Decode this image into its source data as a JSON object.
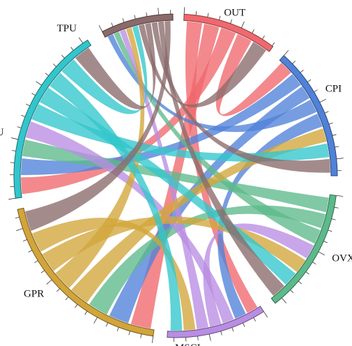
{
  "chart_data": {
    "type": "chord",
    "segments": [
      {
        "id": "OUT",
        "label": "OUT",
        "color": "#f0686d"
      },
      {
        "id": "CPI",
        "label": "CPI",
        "color": "#4f82d8"
      },
      {
        "id": "OVX",
        "label": "OVX",
        "color": "#5cba8a"
      },
      {
        "id": "MSCI",
        "label": "MSCI",
        "color": "#b98de3"
      },
      {
        "id": "GPR",
        "label": "GPR",
        "color": "#d2a53a"
      },
      {
        "id": "EPU",
        "label": "EPU",
        "color": "#32c6cc"
      },
      {
        "id": "TPU",
        "label": "TPU",
        "color": "#8a6a6a"
      }
    ],
    "ribbons": [
      {
        "source": "OUT",
        "target": "MSCI"
      },
      {
        "source": "OUT",
        "target": "GPR"
      },
      {
        "source": "OUT",
        "target": "EPU"
      },
      {
        "source": "OUT",
        "target": "CPI"
      },
      {
        "source": "CPI",
        "target": "EPU"
      },
      {
        "source": "CPI",
        "target": "GPR"
      },
      {
        "source": "CPI",
        "target": "TPU"
      },
      {
        "source": "CPI",
        "target": "MSCI"
      },
      {
        "source": "OVX",
        "target": "EPU"
      },
      {
        "source": "OVX",
        "target": "GPR"
      },
      {
        "source": "OVX",
        "target": "TPU"
      },
      {
        "source": "MSCI",
        "target": "EPU"
      },
      {
        "source": "MSCI",
        "target": "OVX"
      },
      {
        "source": "MSCI",
        "target": "TPU"
      },
      {
        "source": "GPR",
        "target": "CPI"
      },
      {
        "source": "GPR",
        "target": "TPU"
      },
      {
        "source": "GPR",
        "target": "OVX"
      },
      {
        "source": "GPR",
        "target": "MSCI"
      },
      {
        "source": "EPU",
        "target": "CPI"
      },
      {
        "source": "EPU",
        "target": "OVX"
      },
      {
        "source": "EPU",
        "target": "MSCI"
      },
      {
        "source": "EPU",
        "target": "TPU"
      },
      {
        "source": "TPU",
        "target": "OUT"
      },
      {
        "source": "TPU",
        "target": "EPU"
      },
      {
        "source": "TPU",
        "target": "CPI"
      },
      {
        "source": "TPU",
        "target": "OVX"
      },
      {
        "source": "TPU",
        "target": "GPR"
      }
    ]
  }
}
